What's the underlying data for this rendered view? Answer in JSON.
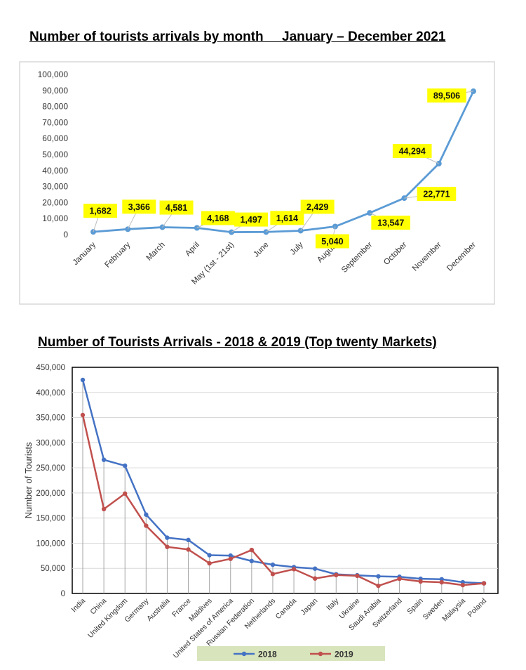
{
  "chart_data": [
    {
      "type": "line",
      "title": "Number of tourists arrivals by month     January – December 2021",
      "categories": [
        "January",
        "February",
        "March",
        "April",
        "May (1st - 21st)",
        "June",
        "July",
        "August",
        "September",
        "October",
        "November",
        "December"
      ],
      "series": [
        {
          "values": [
            1682,
            3366,
            4581,
            4168,
            1497,
            1614,
            2429,
            5040,
            13547,
            22771,
            44294,
            89506
          ],
          "color": "#5B9BD5"
        }
      ],
      "data_labels": [
        "1,682",
        "3,366",
        "4,581",
        "4,168",
        "1,497",
        "1,614",
        "2,429",
        "5,040",
        "13,547",
        "22,771",
        "44,294",
        "89,506"
      ],
      "yticks": [
        "0",
        "10,000",
        "20,000",
        "30,000",
        "40,000",
        "50,000",
        "60,000",
        "70,000",
        "80,000",
        "90,000",
        "100,000"
      ],
      "ylim": [
        0,
        100000
      ],
      "grid": false,
      "label_style": "yellow callouts"
    },
    {
      "type": "line",
      "title": "Number of Tourists Arrivals - 2018 & 2019 (Top twenty Markets)",
      "ylabel": "Number of Tourists",
      "categories": [
        "India",
        "China",
        "United Kingdom",
        "Germany",
        "Australia",
        "France",
        "Maldives",
        "United States of America",
        "Russian Federation",
        "Netherlands",
        "Canada",
        "Japan",
        "Italy",
        "Ukraine",
        "Saudi Arabia",
        "Switzerland",
        "Spain",
        "Sweden",
        "Malaysia",
        "Poland"
      ],
      "series": [
        {
          "name": "2018",
          "color": "#4472C4",
          "values": [
            424887,
            265965,
            254176,
            156888,
            110928,
            106449,
            76108,
            75308,
            64497,
            57143,
            52391,
            49356,
            38155,
            36184,
            34125,
            33209,
            29213,
            28222,
            22336,
            20262
          ]
        },
        {
          "name": "2019",
          "color": "#C0504D",
          "values": [
            355002,
            167863,
            198776,
            134799,
            92674,
            87422,
            59979,
            68862,
            86549,
            38646,
            48373,
            29706,
            36603,
            35092,
            15144,
            29244,
            23793,
            22171,
            16664,
            20162
          ]
        }
      ],
      "yticks": [
        "0",
        "50,000",
        "100,000",
        "150,000",
        "200,000",
        "250,000",
        "300,000",
        "350,000",
        "400,000",
        "450,000"
      ],
      "ylim": [
        0,
        450000
      ],
      "grid": true,
      "legend": "bottom",
      "legend_bg": "#D8E4BC"
    }
  ]
}
